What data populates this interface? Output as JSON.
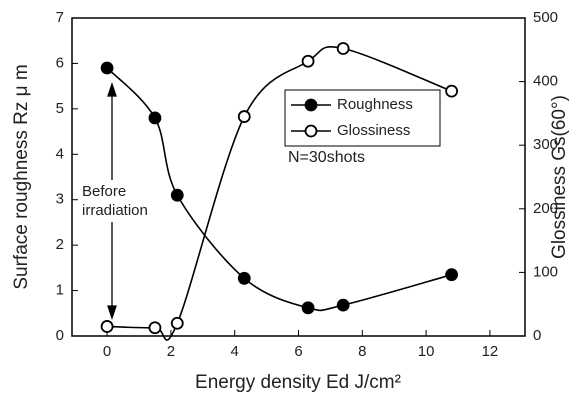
{
  "chart_data": {
    "type": "line",
    "xlabel": "Energy density  Ed J/cm²",
    "ylabel": "Surface roughness  Rz  μ m",
    "y2label": "Glossiness  Gs(60°)",
    "annotations": [
      "Before",
      "irradiation",
      "N=30shots"
    ],
    "series": [
      {
        "name": "Roughness",
        "color": "#000000",
        "marker_fill": "#000000",
        "x": [
          0,
          1.5,
          2.2,
          4.3,
          6.3,
          7.4,
          10.8
        ],
        "values": [
          5.9,
          4.8,
          3.1,
          1.27,
          0.62,
          0.68,
          1.35
        ]
      },
      {
        "name": "Glossiness",
        "color": "#000000",
        "marker_fill": "#ffffff",
        "axis": "y2",
        "x": [
          0,
          1.5,
          2.2,
          4.3,
          6.3,
          7.4,
          10.8
        ],
        "values": [
          15,
          13,
          20,
          345,
          432,
          452,
          385
        ]
      }
    ],
    "xlim": [
      -1.1,
      13.1
    ],
    "xticks": [
      0,
      2,
      4,
      6,
      8,
      10,
      12
    ],
    "ylim": [
      0,
      7
    ],
    "yticks": [
      0,
      1,
      2,
      3,
      4,
      5,
      6,
      7
    ],
    "y2lim": [
      0,
      500
    ],
    "y2ticks": [
      0,
      100,
      200,
      300,
      400,
      500
    ],
    "legend": "upper right"
  }
}
